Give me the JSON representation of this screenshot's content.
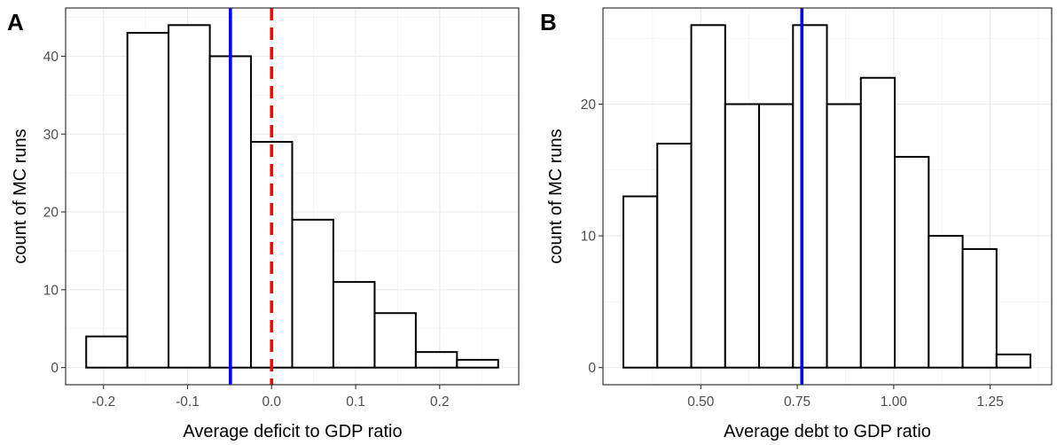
{
  "chart_data": [
    {
      "type": "bar",
      "panel_label": "A",
      "xlabel": "Average deficit to GDP ratio",
      "ylabel": "count of MC runs",
      "xlim": [
        -0.2451,
        0.2941
      ],
      "ylim": [
        -2.2,
        46.2
      ],
      "xticks": [
        -0.2,
        -0.1,
        0.0,
        0.1,
        0.2
      ],
      "xtick_labels": [
        "-0.2",
        "-0.1",
        "0.0",
        "0.1",
        "0.2"
      ],
      "yticks": [
        0,
        10,
        20,
        30,
        40
      ],
      "ytick_labels": [
        "0",
        "10",
        "20",
        "30",
        "40"
      ],
      "bins": [
        [
          -0.2206,
          -0.1716
        ],
        [
          -0.1716,
          -0.1226
        ],
        [
          -0.1226,
          -0.0735
        ],
        [
          -0.0735,
          -0.0245
        ],
        [
          -0.0245,
          0.0245
        ],
        [
          0.0245,
          0.0735
        ],
        [
          0.0735,
          0.1226
        ],
        [
          0.1226,
          0.1716
        ],
        [
          0.1716,
          0.2206
        ],
        [
          0.2206,
          0.2696
        ]
      ],
      "values": [
        4,
        43,
        44,
        40,
        29,
        19,
        11,
        7,
        2,
        1
      ],
      "vlines": [
        {
          "x": -0.049,
          "color": "#0000ff",
          "style": "solid"
        },
        {
          "x": 0.0,
          "color": "#ff0000",
          "style": "dashed"
        }
      ],
      "grid": true
    },
    {
      "type": "bar",
      "panel_label": "B",
      "xlabel": "Average debt to GDP ratio",
      "ylabel": "count of MC runs",
      "xlim": [
        0.2465,
        1.4094
      ],
      "ylim": [
        -1.3,
        27.3
      ],
      "xticks": [
        0.5,
        0.75,
        1.0,
        1.25
      ],
      "xtick_labels": [
        "0.50",
        "0.75",
        "1.00",
        "1.25"
      ],
      "yticks": [
        0,
        10,
        20
      ],
      "ytick_labels": [
        "0",
        "10",
        "20"
      ],
      "bins": [
        [
          0.2994,
          0.3873
        ],
        [
          0.3873,
          0.4753
        ],
        [
          0.4753,
          0.5632
        ],
        [
          0.5632,
          0.6511
        ],
        [
          0.6511,
          0.739
        ],
        [
          0.739,
          0.8269
        ],
        [
          0.8269,
          0.9148
        ],
        [
          0.9148,
          1.0027
        ],
        [
          1.0027,
          1.0907
        ],
        [
          1.0907,
          1.1786
        ],
        [
          1.1786,
          1.2665
        ],
        [
          1.2665,
          1.3544
        ]
      ],
      "values": [
        13,
        17,
        26,
        20,
        20,
        26,
        20,
        22,
        16,
        10,
        9,
        1
      ],
      "vlines": [
        {
          "x": 0.762,
          "color": "#0000ff",
          "style": "solid"
        }
      ],
      "grid": true
    }
  ]
}
